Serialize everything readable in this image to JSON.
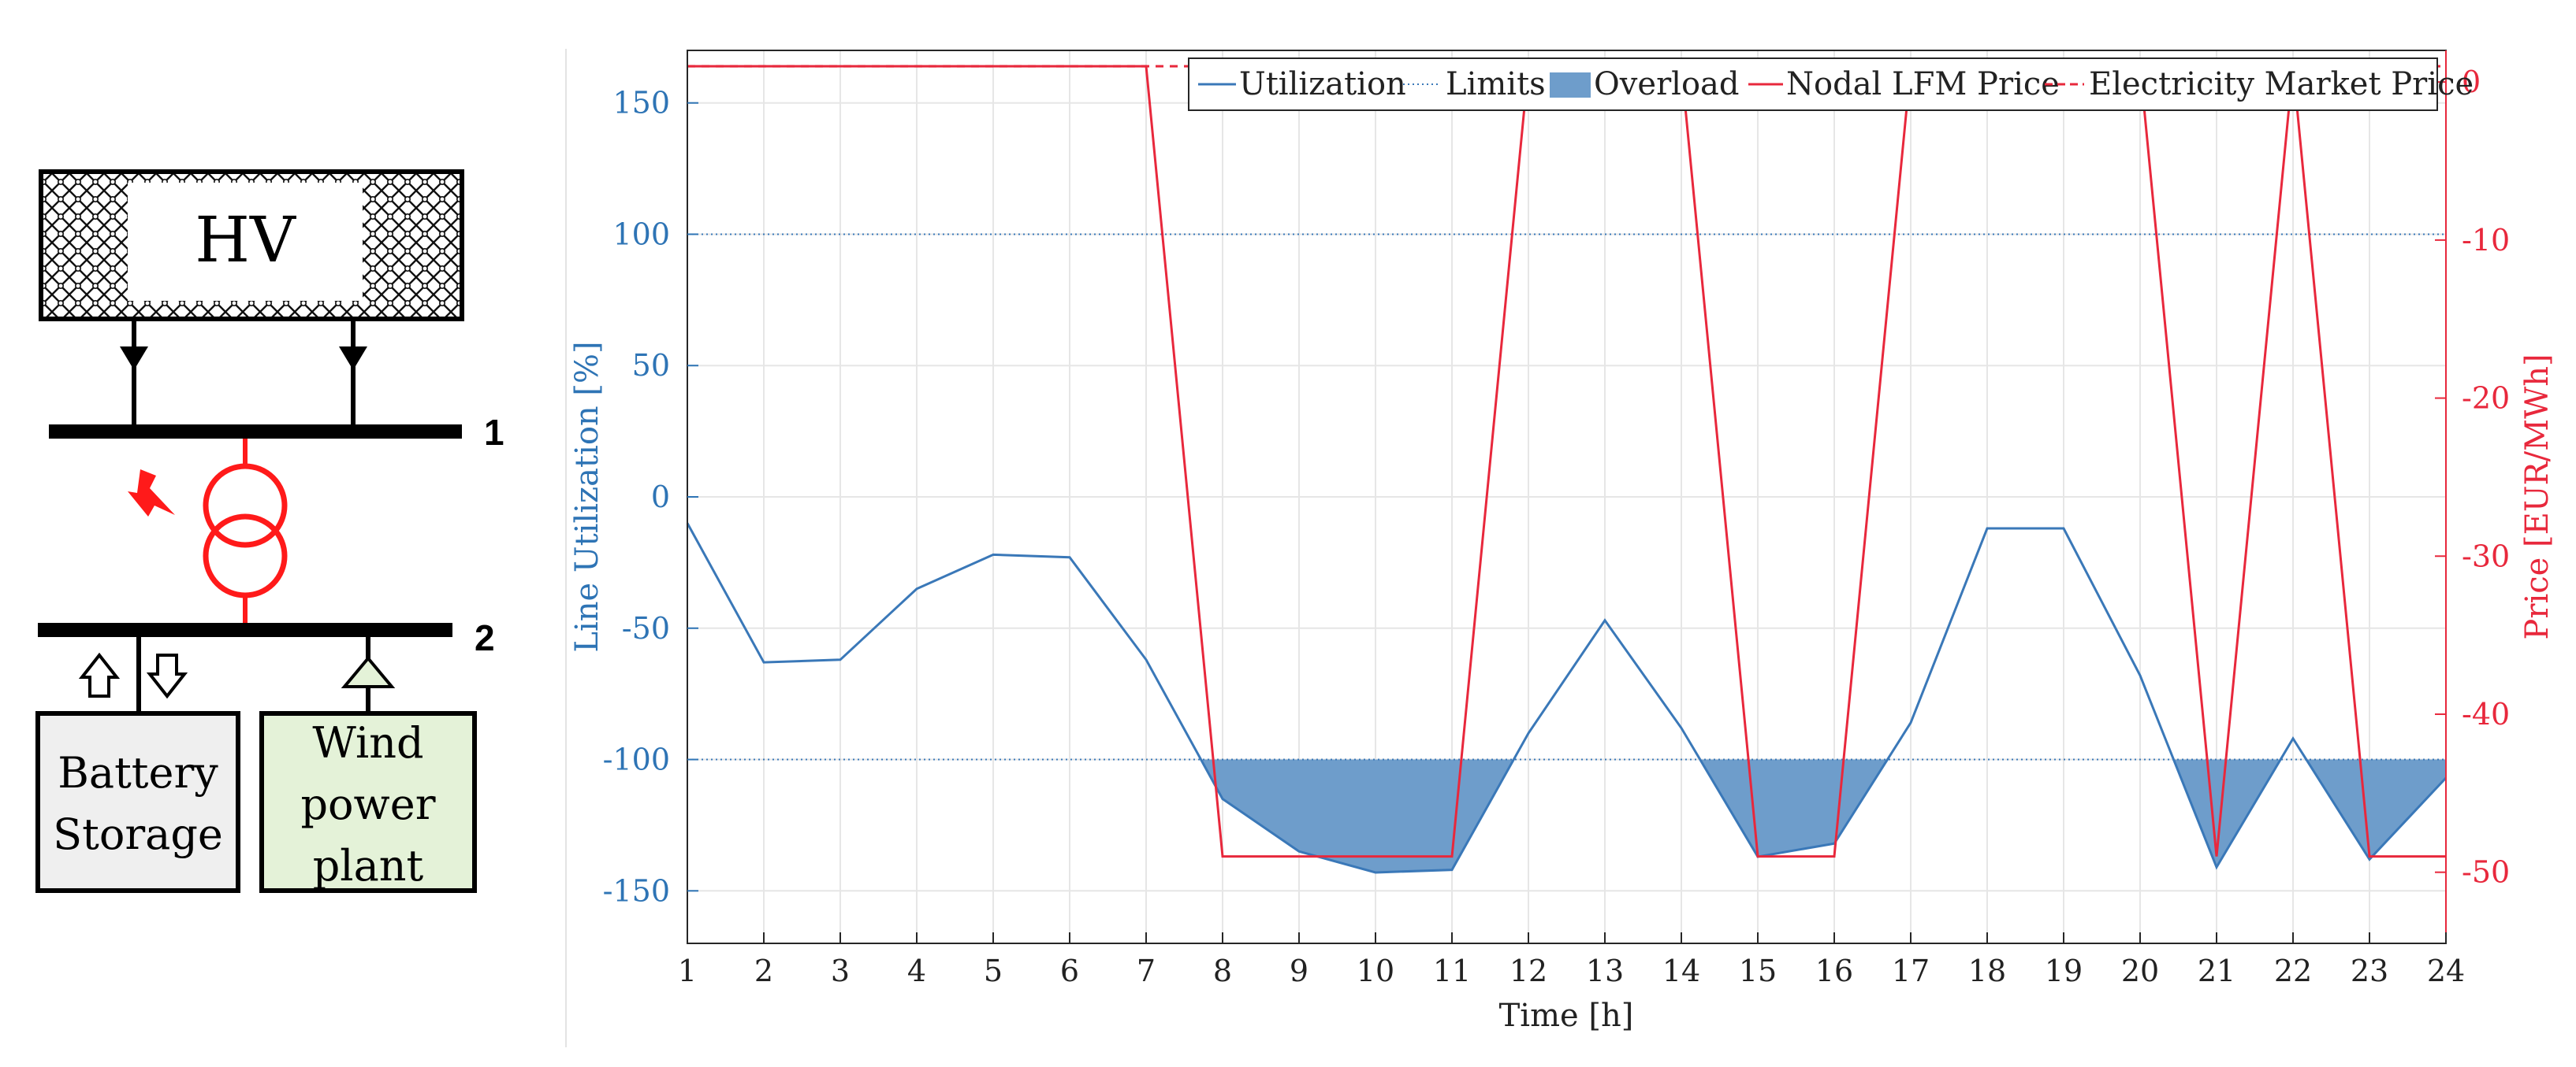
{
  "schematic": {
    "grid_label": "HV",
    "bus1_label": "1",
    "bus2_label": "2",
    "battery_label": [
      "Battery",
      "Storage"
    ],
    "wind_label": [
      "Wind",
      "power",
      "plant"
    ],
    "colors": {
      "transformer": "#ff1a1a",
      "wind_fill": "#e4f2d8",
      "battery_fill": "#efefef"
    }
  },
  "chart_data": {
    "type": "line",
    "xlabel": "Time [h]",
    "ylabel_left": "Line Utilization [%]",
    "ylabel_right": "Price [EUR/MWh]",
    "x": [
      1,
      2,
      3,
      4,
      5,
      6,
      7,
      8,
      9,
      10,
      11,
      12,
      13,
      14,
      15,
      16,
      17,
      18,
      19,
      20,
      21,
      22,
      23,
      24
    ],
    "xlim": [
      1,
      24
    ],
    "ylim_left": [
      -170,
      170
    ],
    "ylim_right": [
      -54.5,
      2
    ],
    "left_ticks": [
      150,
      100,
      50,
      0,
      -50,
      -100,
      -150
    ],
    "right_ticks": [
      0,
      -10,
      -20,
      -30,
      -40,
      -50
    ],
    "limits": [
      100,
      -100
    ],
    "grid": true,
    "legend_position": "top-right",
    "legend": [
      {
        "label": "Utilization",
        "style": "solid-line",
        "color": "#3a78b8"
      },
      {
        "label": "Limits",
        "style": "dotted-line",
        "color": "#3a78b8"
      },
      {
        "label": "Overload",
        "style": "filled",
        "color": "#7ea6cf"
      },
      {
        "label": "Nodal LFM Price",
        "style": "solid-line",
        "color": "#e8283c"
      },
      {
        "label": "Electricity Market Price",
        "style": "dashed-line",
        "color": "#e8283c"
      }
    ],
    "series": [
      {
        "name": "Utilization",
        "axis": "left",
        "color": "#3a78b8",
        "values": [
          -10,
          -63,
          -62,
          -35,
          -22,
          -23,
          -62,
          -115,
          -135,
          -143,
          -142,
          -90,
          -47,
          -88,
          -137,
          -132,
          -86,
          -12,
          -12,
          -68,
          -141,
          -92,
          -138,
          -107
        ]
      },
      {
        "name": "Nodal LFM Price",
        "axis": "right",
        "color": "#e8283c",
        "values": [
          1,
          1,
          1,
          1,
          1,
          1,
          1,
          -49,
          -49,
          -49,
          -49,
          1,
          1,
          1,
          -49,
          -49,
          1,
          1,
          1,
          1,
          -49,
          1,
          -49,
          -49
        ]
      },
      {
        "name": "Electricity Market Price",
        "axis": "right",
        "color": "#e8283c",
        "dashed": true,
        "values": [
          1,
          1,
          1,
          1,
          1,
          1,
          1,
          1,
          1,
          1,
          1,
          1,
          1,
          1,
          1,
          1,
          1,
          1,
          1,
          1,
          1,
          1,
          1,
          1
        ]
      }
    ],
    "colors": {
      "left_axis": "#2e74b5",
      "right_axis": "#e8283c",
      "overload_fill": "#6e9dcb",
      "grid": "#e6e6e6"
    }
  }
}
